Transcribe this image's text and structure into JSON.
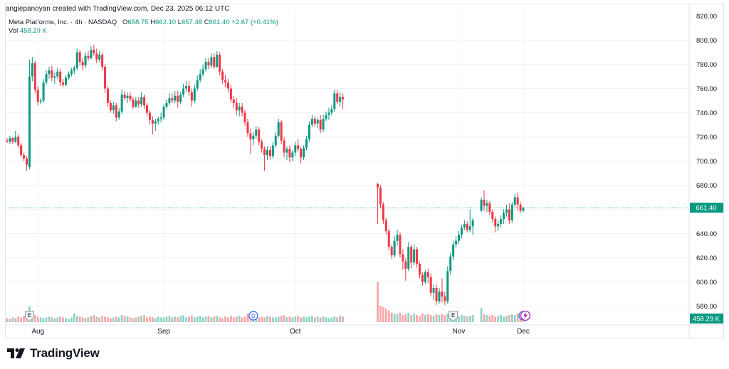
{
  "attribution": "angiepanoyan created with TradingView.com, Dec 23, 2025 06:12 UTC",
  "symbol": {
    "name": "Meta Platforms, Inc.",
    "interval": "4h",
    "exchange": "NASDAQ",
    "o_label": "O",
    "o_value": "658.75",
    "h_label": "H",
    "h_value": "662.10",
    "l_label": "L",
    "l_value": "657.48",
    "c_label": "C",
    "c_value": "661.40",
    "change": "+2.67 (+0.41%)"
  },
  "volume": {
    "label": "Vol",
    "value": "458.29 K"
  },
  "footer": {
    "brand": "TradingView"
  },
  "colors": {
    "up": "#089981",
    "down": "#f23645",
    "up_vol": "#8fd5c9",
    "down_vol": "#f7a9a8",
    "grid": "#f0f3fa",
    "text": "#131722"
  },
  "chart_data": {
    "type": "candlestick",
    "title": "Meta Platforms, Inc. · 4h · NASDAQ",
    "ylim": [
      565,
      825
    ],
    "y_ticks": [
      "820.00",
      "800.00",
      "780.00",
      "760.00",
      "740.00",
      "720.00",
      "700.00",
      "680.00",
      "660.00",
      "640.00",
      "620.00",
      "600.00",
      "580.00"
    ],
    "y_tick_values": [
      820,
      800,
      780,
      760,
      740,
      720,
      700,
      680,
      660,
      640,
      620,
      600,
      580
    ],
    "x_labels": [
      "Aug",
      "Sep",
      "Oct",
      "Nov",
      "Dec"
    ],
    "x_label_index": [
      11,
      56,
      103,
      150,
      191
    ],
    "last_price": "661.40",
    "last_price_value": 661.4,
    "last_volume": "458.29 K",
    "markers": [
      {
        "type": "E",
        "index": 8
      },
      {
        "type": "D",
        "index": 88
      },
      {
        "type": "E",
        "index": 148
      },
      {
        "type": "D",
        "index": 216
      },
      {
        "type": "lightning",
        "index": 227
      }
    ],
    "ohlc": [
      [
        717,
        719,
        715,
        716
      ],
      [
        716,
        721,
        714,
        719
      ],
      [
        719,
        720,
        714,
        716
      ],
      [
        716,
        725,
        715,
        720
      ],
      [
        720,
        722,
        711,
        713
      ],
      [
        713,
        715,
        703,
        705
      ],
      [
        705,
        707,
        700,
        702
      ],
      [
        702,
        704,
        692,
        697
      ],
      [
        695,
        784,
        693,
        770
      ],
      [
        770,
        786,
        766,
        781
      ],
      [
        781,
        783,
        756,
        759
      ],
      [
        759,
        762,
        746,
        749
      ],
      [
        749,
        752,
        747,
        750
      ],
      [
        750,
        768,
        748,
        765
      ],
      [
        765,
        775,
        763,
        772
      ],
      [
        772,
        778,
        768,
        775
      ],
      [
        775,
        779,
        766,
        769
      ],
      [
        769,
        773,
        764,
        770
      ],
      [
        770,
        777,
        768,
        774
      ],
      [
        774,
        776,
        762,
        765
      ],
      [
        765,
        768,
        761,
        763
      ],
      [
        763,
        771,
        762,
        769
      ],
      [
        769,
        774,
        767,
        772
      ],
      [
        772,
        777,
        770,
        775
      ],
      [
        775,
        779,
        772,
        777
      ],
      [
        777,
        793,
        775,
        790
      ],
      [
        790,
        792,
        779,
        782
      ],
      [
        782,
        785,
        775,
        779
      ],
      [
        779,
        790,
        777,
        787
      ],
      [
        787,
        791,
        783,
        785
      ],
      [
        785,
        795,
        784,
        792
      ],
      [
        792,
        796,
        787,
        789
      ],
      [
        789,
        793,
        781,
        784
      ],
      [
        784,
        791,
        782,
        788
      ],
      [
        788,
        790,
        775,
        778
      ],
      [
        778,
        780,
        756,
        760
      ],
      [
        760,
        762,
        745,
        748
      ],
      [
        748,
        750,
        740,
        742
      ],
      [
        742,
        749,
        739,
        746
      ],
      [
        746,
        748,
        733,
        736
      ],
      [
        736,
        744,
        734,
        741
      ],
      [
        741,
        759,
        739,
        755
      ],
      [
        755,
        758,
        750,
        752
      ],
      [
        752,
        757,
        748,
        754
      ],
      [
        754,
        757,
        749,
        751
      ],
      [
        751,
        753,
        743,
        745
      ],
      [
        745,
        753,
        744,
        750
      ],
      [
        750,
        753,
        744,
        747
      ],
      [
        747,
        757,
        745,
        753
      ],
      [
        753,
        755,
        743,
        746
      ],
      [
        746,
        748,
        737,
        740
      ],
      [
        740,
        742,
        730,
        734
      ],
      [
        734,
        737,
        722,
        731
      ],
      [
        731,
        735,
        725,
        733
      ],
      [
        733,
        737,
        730,
        735
      ],
      [
        735,
        740,
        732,
        736
      ],
      [
        736,
        747,
        734,
        745
      ],
      [
        745,
        751,
        743,
        748
      ],
      [
        748,
        756,
        746,
        752
      ],
      [
        752,
        756,
        748,
        750
      ],
      [
        750,
        758,
        748,
        754
      ],
      [
        754,
        758,
        744,
        749
      ],
      [
        749,
        757,
        747,
        755
      ],
      [
        755,
        764,
        753,
        760
      ],
      [
        760,
        766,
        757,
        762
      ],
      [
        762,
        766,
        754,
        757
      ],
      [
        757,
        760,
        745,
        750
      ],
      [
        750,
        763,
        748,
        760
      ],
      [
        760,
        771,
        758,
        767
      ],
      [
        767,
        776,
        765,
        772
      ],
      [
        772,
        780,
        770,
        776
      ],
      [
        776,
        785,
        774,
        782
      ],
      [
        782,
        785,
        776,
        779
      ],
      [
        779,
        789,
        777,
        786
      ],
      [
        786,
        789,
        776,
        778
      ],
      [
        778,
        791,
        777,
        788
      ],
      [
        788,
        790,
        771,
        774
      ],
      [
        774,
        776,
        764,
        767
      ],
      [
        767,
        771,
        761,
        765
      ],
      [
        765,
        768,
        757,
        760
      ],
      [
        760,
        763,
        748,
        751
      ],
      [
        751,
        754,
        744,
        748
      ],
      [
        748,
        752,
        738,
        742
      ],
      [
        742,
        748,
        737,
        745
      ],
      [
        745,
        748,
        737,
        740
      ],
      [
        740,
        742,
        729,
        732
      ],
      [
        732,
        735,
        720,
        723
      ],
      [
        723,
        727,
        706,
        718
      ],
      [
        718,
        724,
        713,
        721
      ],
      [
        721,
        729,
        718,
        726
      ],
      [
        726,
        728,
        713,
        716
      ],
      [
        716,
        718,
        707,
        710
      ],
      [
        710,
        712,
        692,
        705
      ],
      [
        705,
        712,
        701,
        709
      ],
      [
        709,
        712,
        701,
        704
      ],
      [
        704,
        716,
        702,
        713
      ],
      [
        713,
        724,
        711,
        721
      ],
      [
        721,
        735,
        719,
        732
      ],
      [
        732,
        734,
        714,
        717
      ],
      [
        717,
        720,
        703,
        707
      ],
      [
        707,
        712,
        701,
        710
      ],
      [
        710,
        713,
        699,
        703
      ],
      [
        703,
        709,
        700,
        707
      ],
      [
        707,
        716,
        704,
        713
      ],
      [
        713,
        718,
        708,
        710
      ],
      [
        710,
        712,
        698,
        703
      ],
      [
        703,
        713,
        701,
        711
      ],
      [
        711,
        721,
        709,
        718
      ],
      [
        718,
        733,
        716,
        730
      ],
      [
        730,
        738,
        728,
        735
      ],
      [
        735,
        737,
        728,
        731
      ],
      [
        731,
        736,
        727,
        734
      ],
      [
        734,
        738,
        723,
        726
      ],
      [
        726,
        738,
        724,
        735
      ],
      [
        735,
        741,
        733,
        738
      ],
      [
        738,
        744,
        734,
        740
      ],
      [
        740,
        746,
        738,
        743
      ],
      [
        743,
        759,
        741,
        756
      ],
      [
        756,
        759,
        747,
        749
      ],
      [
        749,
        757,
        745,
        753
      ],
      [
        753,
        756,
        743,
        751
      ],
      [
        681,
        682,
        648,
        678
      ],
      [
        678,
        680,
        661,
        664
      ],
      [
        664,
        666,
        648,
        651
      ],
      [
        651,
        653,
        639,
        642
      ],
      [
        642,
        644,
        626,
        629
      ],
      [
        629,
        631,
        619,
        622
      ],
      [
        622,
        638,
        620,
        634
      ],
      [
        634,
        643,
        630,
        639
      ],
      [
        639,
        641,
        620,
        623
      ],
      [
        623,
        627,
        610,
        617
      ],
      [
        617,
        620,
        601,
        611
      ],
      [
        611,
        633,
        609,
        629
      ],
      [
        629,
        631,
        611,
        616
      ],
      [
        616,
        631,
        614,
        627
      ],
      [
        627,
        629,
        612,
        615
      ],
      [
        615,
        617,
        603,
        606
      ],
      [
        606,
        608,
        597,
        600
      ],
      [
        600,
        610,
        598,
        608
      ],
      [
        608,
        611,
        599,
        604
      ],
      [
        604,
        607,
        588,
        591
      ],
      [
        591,
        598,
        585,
        595
      ],
      [
        595,
        598,
        581,
        584
      ],
      [
        584,
        595,
        582,
        592
      ],
      [
        592,
        603,
        583,
        588
      ],
      [
        588,
        592,
        581,
        584
      ],
      [
        584,
        613,
        582,
        609
      ],
      [
        609,
        624,
        606,
        621
      ],
      [
        621,
        634,
        618,
        631
      ],
      [
        631,
        638,
        628,
        634
      ],
      [
        634,
        642,
        631,
        639
      ],
      [
        639,
        647,
        636,
        645
      ],
      [
        645,
        651,
        643,
        648
      ],
      [
        648,
        650,
        641,
        643
      ],
      [
        643,
        660,
        641,
        646
      ],
      [
        646,
        653,
        639,
        651
      ],
      [
        659,
        670,
        658,
        668
      ],
      [
        668,
        676,
        659,
        663
      ],
      [
        663,
        668,
        658,
        665
      ],
      [
        665,
        667,
        655,
        658
      ],
      [
        658,
        660,
        649,
        652
      ],
      [
        652,
        654,
        641,
        646
      ],
      [
        646,
        651,
        642,
        648
      ],
      [
        648,
        655,
        645,
        652
      ],
      [
        652,
        660,
        648,
        657
      ],
      [
        657,
        664,
        654,
        660
      ],
      [
        660,
        665,
        648,
        651
      ],
      [
        651,
        666,
        649,
        664
      ],
      [
        664,
        673,
        662,
        670
      ],
      [
        670,
        674,
        659,
        664
      ],
      [
        664,
        666,
        657,
        659
      ],
      [
        658.75,
        662.1,
        657.48,
        661.4
      ]
    ],
    "gap_after_index": [
      120,
      155
    ],
    "volume_relative": [
      0.25,
      0.2,
      0.3,
      0.25,
      0.35,
      0.3,
      0.4,
      0.45,
      1.0,
      0.6,
      0.45,
      0.35,
      0.3,
      0.25,
      0.3,
      0.35,
      0.3,
      0.25,
      0.3,
      0.35,
      0.3,
      0.25,
      0.2,
      0.3,
      0.55,
      0.4,
      0.35,
      0.3,
      0.25,
      0.3,
      0.4,
      0.45,
      0.35,
      0.3,
      0.4,
      0.35,
      0.3,
      0.25,
      0.3,
      0.35,
      0.3,
      0.45,
      0.4,
      0.35,
      0.3,
      0.25,
      0.3,
      0.35,
      0.4,
      0.45,
      0.3,
      0.35,
      0.3,
      0.25,
      0.35,
      0.3,
      0.3,
      0.35,
      0.4,
      0.3,
      0.35,
      0.3,
      0.4,
      0.45,
      0.3,
      0.35,
      0.4,
      0.3,
      0.35,
      0.4,
      0.3,
      0.35,
      0.4,
      0.3,
      0.35,
      0.4,
      0.3,
      0.25,
      0.35,
      0.3,
      0.4,
      0.3,
      0.35,
      0.4,
      0.3,
      0.35,
      0.55,
      0.45,
      0.4,
      0.35,
      0.3,
      0.35,
      0.3,
      0.4,
      0.35,
      0.3,
      0.3,
      0.35,
      0.4,
      0.45,
      0.3,
      0.35,
      0.3,
      0.35,
      0.4,
      0.3,
      0.35,
      0.3,
      0.35,
      0.4,
      0.3,
      0.35,
      0.3,
      0.35,
      0.3,
      0.25,
      0.3,
      0.35,
      0.3,
      0.4,
      0.35,
      2.55,
      1.05,
      0.95,
      0.85,
      0.75,
      0.6,
      0.55,
      0.5,
      0.6,
      0.45,
      0.5,
      0.6,
      0.45,
      0.55,
      0.45,
      0.4,
      0.55,
      0.45,
      0.5,
      0.45,
      0.4,
      0.5,
      0.45,
      0.5,
      0.45,
      0.55,
      0.5,
      0.45,
      0.4,
      0.35,
      0.45,
      0.4,
      0.35,
      0.4,
      0.45,
      0.9,
      0.5,
      0.45,
      0.4,
      0.45,
      0.35,
      0.4,
      0.45,
      0.35,
      0.4,
      0.45,
      0.5,
      0.45,
      0.55,
      0.6,
      0.45
    ]
  }
}
